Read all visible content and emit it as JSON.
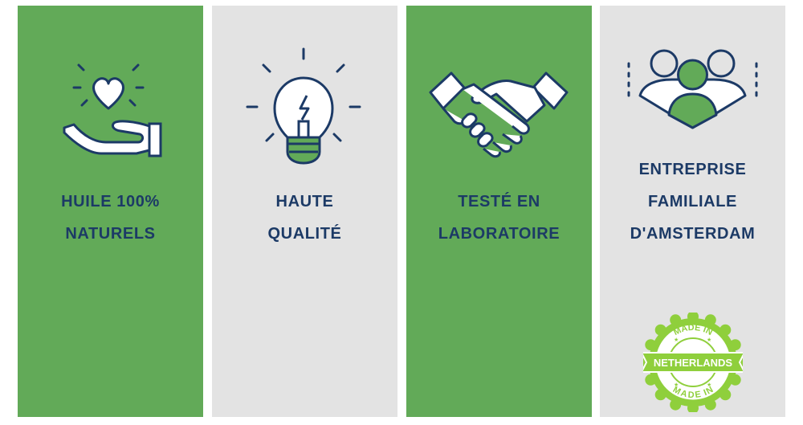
{
  "features": [
    {
      "icon": "heart-hand-icon",
      "line1": "HUILE 100%",
      "line2": "NATURELS"
    },
    {
      "icon": "lightbulb-icon",
      "line1": "HAUTE",
      "line2": "QUALITÉ"
    },
    {
      "icon": "handshake-icon",
      "line1": "TESTÉ EN",
      "line2": "LABORATOIRE"
    },
    {
      "icon": "family-group-icon",
      "line1": "ENTREPRISE",
      "line2": "FAMILIALE",
      "line3": "D'AMSTERDAM"
    }
  ],
  "badge": {
    "icon": "made-in-netherlands-stamp-icon",
    "top_text": "MADE IN",
    "center_text": "NETHERLANDS",
    "bottom_text": "MADE IN"
  },
  "colors": {
    "green": "#62aa58",
    "grey": "#e3e3e3",
    "navy": "#1c3a66",
    "badge_green": "#8fcf3c"
  }
}
